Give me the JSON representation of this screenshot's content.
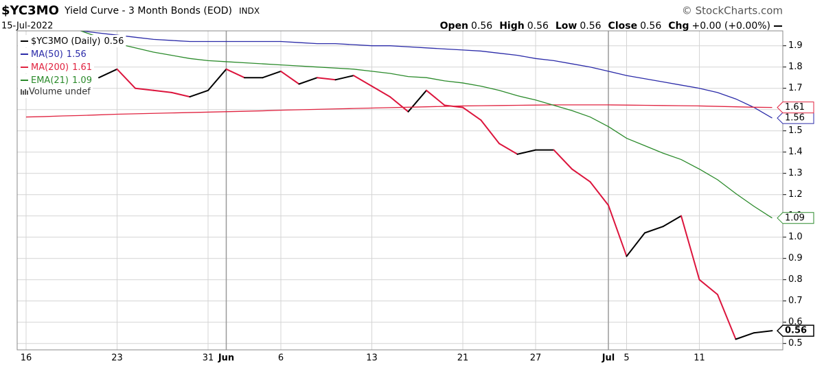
{
  "chart_data": {
    "type": "line",
    "symbol": "$YC3MO",
    "title": "Yield Curve - 3 Month Bonds (EOD)",
    "exchange": "INDX",
    "source": "© StockCharts.com",
    "date": "15-Jul-2022",
    "quote": [
      {
        "label": "Open",
        "value": 0.56
      },
      {
        "label": "High",
        "value": 0.56
      },
      {
        "label": "Low",
        "value": 0.56
      },
      {
        "label": "Close",
        "value": 0.56
      },
      {
        "label": "Chg",
        "value": "+0.00 (+0.00%)"
      }
    ],
    "volume_note": "Volume undef",
    "categories": [
      "16",
      null,
      null,
      null,
      null,
      "23",
      null,
      null,
      null,
      null,
      "31",
      "Jun",
      null,
      null,
      "6",
      null,
      null,
      null,
      null,
      "13",
      null,
      null,
      null,
      null,
      "21",
      null,
      null,
      null,
      "27",
      null,
      null,
      null,
      "Jul",
      "5",
      null,
      null,
      null,
      "11",
      null,
      null,
      null,
      null
    ],
    "series": [
      {
        "name": "$YC3MO (Daily)",
        "color": "#000000",
        "down_color": "#dc143c",
        "width": 2,
        "values": [
          null,
          null,
          null,
          null,
          1.75,
          1.79,
          1.7,
          1.69,
          1.68,
          1.66,
          1.69,
          1.79,
          1.75,
          1.75,
          1.78,
          1.72,
          1.75,
          1.74,
          1.76,
          1.71,
          1.66,
          1.59,
          1.69,
          1.62,
          1.61,
          1.55,
          1.44,
          1.39,
          1.41,
          1.41,
          1.32,
          1.26,
          1.15,
          0.91,
          1.02,
          1.05,
          1.1,
          0.8,
          0.73,
          0.52,
          0.55,
          0.56
        ]
      },
      {
        "name": "MA(50)",
        "color": "#2a2aa8",
        "width": 1.3,
        "values": [
          null,
          null,
          null,
          1.97,
          1.96,
          1.95,
          1.94,
          1.93,
          1.925,
          1.92,
          1.92,
          1.92,
          1.92,
          1.92,
          1.92,
          1.915,
          1.91,
          1.91,
          1.905,
          1.9,
          1.9,
          1.895,
          1.89,
          1.885,
          1.88,
          1.875,
          1.865,
          1.855,
          1.84,
          1.83,
          1.815,
          1.8,
          1.78,
          1.76,
          1.745,
          1.73,
          1.715,
          1.7,
          1.68,
          1.65,
          1.61,
          1.56
        ]
      },
      {
        "name": "MA(200)",
        "color": "#e0223f",
        "width": 1.3,
        "values": [
          1.565,
          1.567,
          1.57,
          1.572,
          1.575,
          1.578,
          1.58,
          1.582,
          1.584,
          1.586,
          1.588,
          1.59,
          1.592,
          1.594,
          1.597,
          1.599,
          1.601,
          1.603,
          1.605,
          1.607,
          1.609,
          1.611,
          1.613,
          1.615,
          1.617,
          1.618,
          1.619,
          1.62,
          1.621,
          1.622,
          1.622,
          1.622,
          1.622,
          1.621,
          1.62,
          1.619,
          1.618,
          1.617,
          1.615,
          1.613,
          1.611,
          1.61
        ]
      },
      {
        "name": "EMA(21)",
        "color": "#2a8a2a",
        "width": 1.3,
        "values": [
          null,
          null,
          null,
          1.97,
          1.94,
          1.91,
          1.89,
          1.87,
          1.855,
          1.84,
          1.83,
          1.825,
          1.82,
          1.815,
          1.81,
          1.805,
          1.8,
          1.795,
          1.79,
          1.78,
          1.77,
          1.755,
          1.75,
          1.735,
          1.725,
          1.71,
          1.69,
          1.665,
          1.645,
          1.62,
          1.595,
          1.565,
          1.52,
          1.465,
          1.43,
          1.395,
          1.365,
          1.32,
          1.27,
          1.205,
          1.145,
          1.09
        ]
      }
    ],
    "ylim": [
      0.47,
      1.97
    ],
    "yticks": [
      0.5,
      0.6,
      0.7,
      0.8,
      0.9,
      {
        "value": 1,
        "label": "1.0"
      },
      1.1,
      1.2,
      1.3,
      1.4,
      1.5,
      1.6,
      1.7,
      1.8,
      1.9
    ],
    "grid": true,
    "legend": "top-left"
  }
}
